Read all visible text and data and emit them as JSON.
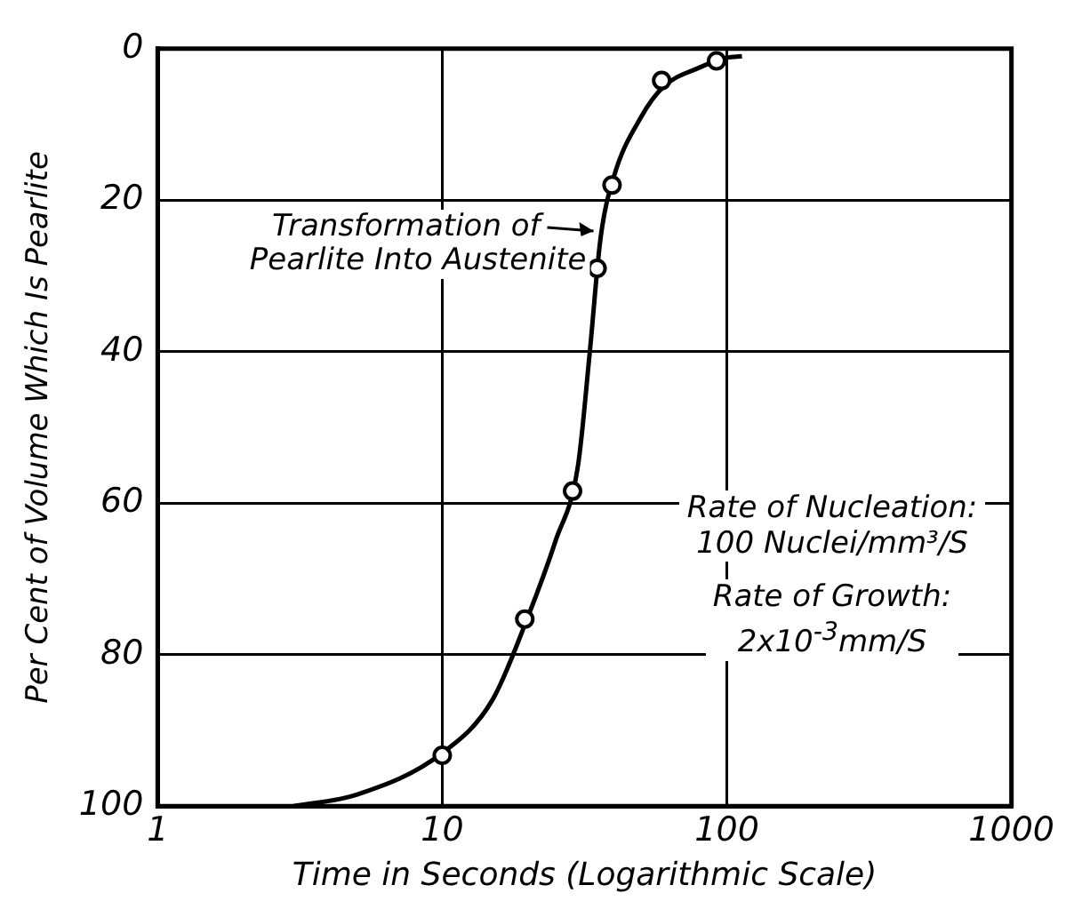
{
  "chart_data": {
    "type": "line",
    "xlabel": "Time in Seconds (Logarithmic Scale)",
    "ylabel": "Per Cent of Volume Which Is Pearlite",
    "log": "x",
    "xlim": [
      1,
      1000
    ],
    "xticks": [
      1,
      10,
      100,
      1000
    ],
    "ylim": [
      100,
      0
    ],
    "yticks": [
      0,
      20,
      40,
      60,
      80,
      100
    ],
    "grid": true,
    "legend": false,
    "series": [
      {
        "marker": "none",
        "line_style": "solid",
        "color": "#000000",
        "x": [
          3,
          5,
          10,
          15,
          20,
          25,
          30,
          33,
          36,
          40,
          50,
          60,
          80,
          100,
          113
        ],
        "values": [
          100,
          98.5,
          93,
          86,
          75,
          65,
          55,
          40,
          25,
          17,
          9,
          5,
          2.5,
          1.2,
          1
        ]
      },
      {
        "type": "scatter",
        "marker": "circle",
        "color": "#000000",
        "x": [
          10,
          19.5,
          28.7,
          35,
          39.5,
          59,
          92
        ],
        "values": [
          93.3,
          75.3,
          58.4,
          29,
          18,
          4.2,
          1.6
        ]
      }
    ],
    "annotations": [
      {
        "text": "Transformation of\nPearlite Into Austenite",
        "x": 36,
        "y": 25
      },
      "Rate of Nucleation:\n100 Nuclei/mm³/S",
      "Rate of Growth:\n2x10$^{-3}$mm/S"
    ]
  }
}
